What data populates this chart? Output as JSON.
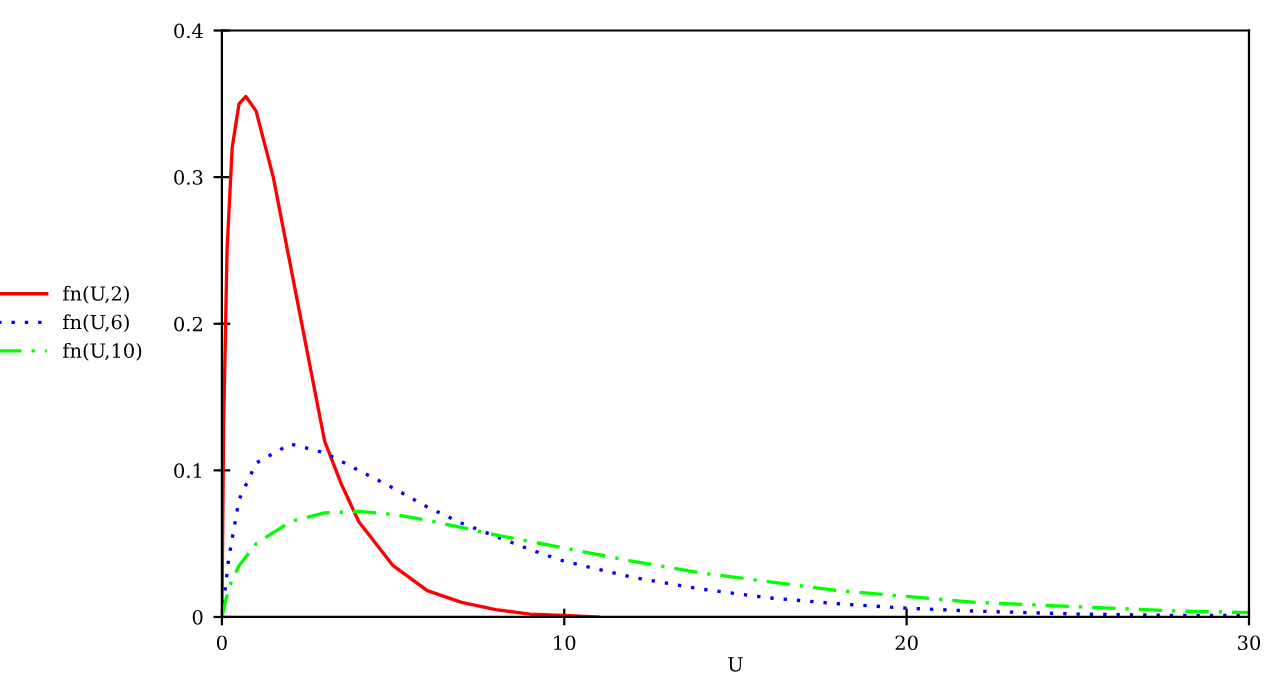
{
  "chart_data": {
    "type": "line",
    "xlabel": "U",
    "xlim": [
      0,
      30
    ],
    "xticks": [
      0,
      10,
      20,
      30
    ],
    "ylim": [
      0,
      0.4
    ],
    "yticks": [
      0,
      0.1,
      0.2,
      0.3,
      0.4
    ],
    "grid": false,
    "legend": "left",
    "marker": "none",
    "series": [
      {
        "name": "fn(U,2)",
        "color": "#ff0000",
        "line_style": "solid",
        "x": [
          0,
          0.05,
          0.15,
          0.3,
          0.5,
          0.7,
          1.0,
          1.5,
          2,
          2.5,
          3,
          3.5,
          4,
          5,
          6,
          7,
          8,
          9,
          10,
          11
        ],
        "values": [
          0,
          0.13,
          0.25,
          0.32,
          0.35,
          0.355,
          0.345,
          0.3,
          0.24,
          0.18,
          0.12,
          0.09,
          0.065,
          0.035,
          0.018,
          0.01,
          0.005,
          0.002,
          0.001,
          0
        ]
      },
      {
        "name": "fn(U,6)",
        "color": "#0000ff",
        "line_style": "dotted",
        "x": [
          0,
          0.2,
          0.5,
          1,
          2,
          3,
          4,
          5,
          6,
          7,
          8,
          9,
          10,
          12,
          14,
          16,
          18,
          20,
          22,
          25,
          28,
          30
        ],
        "values": [
          0,
          0.04,
          0.08,
          0.105,
          0.118,
          0.112,
          0.1,
          0.088,
          0.075,
          0.064,
          0.055,
          0.046,
          0.038,
          0.027,
          0.019,
          0.013,
          0.009,
          0.006,
          0.004,
          0.002,
          0.001,
          0.001
        ]
      },
      {
        "name": "fn(U,10)",
        "color": "#00ff00",
        "line_style": "dashed",
        "x": [
          0,
          0.2,
          0.5,
          1,
          2,
          3,
          4,
          5,
          6,
          8,
          10,
          12,
          14,
          16,
          18,
          20,
          22,
          25,
          28,
          30
        ],
        "values": [
          0,
          0.02,
          0.035,
          0.05,
          0.065,
          0.071,
          0.072,
          0.07,
          0.066,
          0.056,
          0.047,
          0.038,
          0.03,
          0.024,
          0.018,
          0.014,
          0.01,
          0.007,
          0.004,
          0.003
        ]
      }
    ]
  }
}
